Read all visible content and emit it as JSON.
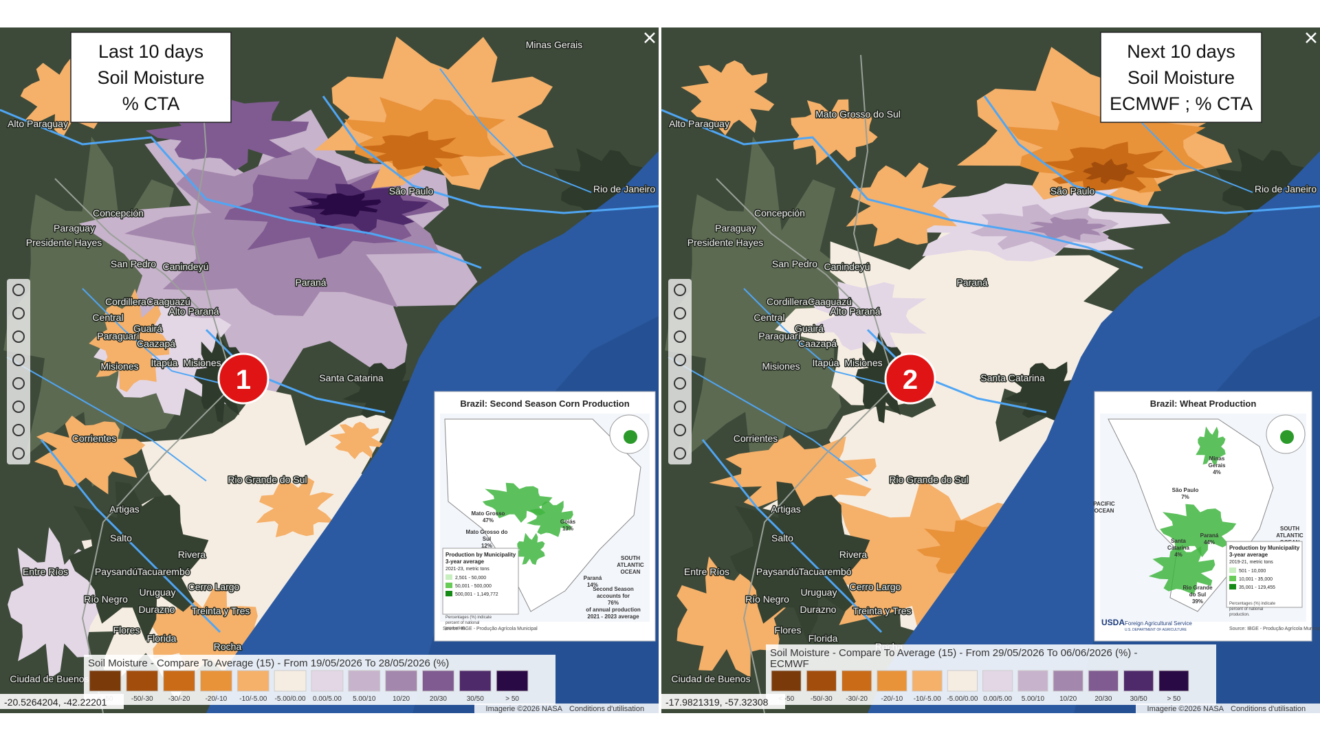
{
  "map_labels": [
    "Minas Gerais",
    "Alto Paraguay",
    "São Paulo",
    "Rio de Janeiro",
    "Concepción",
    "Paraguay",
    "Presidente Hayes",
    "San Pedro",
    "Canindeyú",
    "Paraná",
    "Cordillera",
    "Caaguazú",
    "Alto Paraná",
    "Central",
    "Guairá",
    "Paraguarí",
    "Caazapá",
    "Misiones",
    "Itapúa",
    "Misiones",
    "Santa Catarina",
    "Corrientes",
    "Rio Grande do Sul",
    "Artigas",
    "Salto",
    "Rivera",
    "Entre Ríos",
    "Paysandú",
    "Tacuarembó",
    "Cerro Largo",
    "Río Negro",
    "Uruguay",
    "Durazno",
    "Treinta y Tres",
    "Flores",
    "Florida",
    "Rocha",
    "Ciudad de Buenos"
  ],
  "legend_classes": [
    {
      "label": "< -50",
      "color": "#7a3a0a"
    },
    {
      "label": "-50/-30",
      "color": "#a24d0c"
    },
    {
      "label": "-30/-20",
      "color": "#c96b17"
    },
    {
      "label": "-20/-10",
      "color": "#e8923a"
    },
    {
      "label": "-10/-5.00",
      "color": "#f5b06a"
    },
    {
      "label": "-5.00/0.00",
      "color": "#f6ede2"
    },
    {
      "label": "0.00/5.00",
      "color": "#e3d7e6"
    },
    {
      "label": "5.00/10",
      "color": "#c7b3cc"
    },
    {
      "label": "10/20",
      "color": "#a487ad"
    },
    {
      "label": "20/30",
      "color": "#7f5b91"
    },
    {
      "label": "30/50",
      "color": "#4f2a6b"
    },
    {
      "label": "> 50",
      "color": "#2a0a45"
    }
  ],
  "panels": [
    {
      "title": [
        "Last 10 days",
        "Soil Moisture",
        "% CTA"
      ],
      "badge": "1",
      "extra_labels": [],
      "legend_title": [
        "Soil Moisture - Compare To Average (15) - From 19/05/2026 To 28/05/2026 (%)"
      ],
      "coordinates": "-20.5264204, -42.22201",
      "attribution": [
        "Imagerie ©2026 NASA",
        "Conditions d'utilisation"
      ],
      "inset": {
        "title": "Brazil: Second Season Corn Production",
        "labels": [
          [
            "Mato Grosso",
            "47%"
          ],
          [
            "Mato Grosso do",
            "Sul",
            "12%"
          ],
          [
            "Goiás",
            "13%"
          ],
          [
            "Paraná",
            "14%"
          ],
          [
            "SOUTH",
            "ATLANTIC",
            "OCEAN"
          ],
          [
            "Second Season",
            "accounts for",
            "76%",
            "of annual production",
            "2021 - 2023 average"
          ]
        ],
        "legend_title": [
          "Production by Municipality",
          "3-year average",
          "2021-23, metric tons"
        ],
        "legend": [
          "2,501 - 50,000",
          "50,001 - 500,000",
          "500,001 - 1,149,772"
        ],
        "note": [
          "Percentages (%) indicate",
          "percent of national",
          "production."
        ],
        "source": "Source: IBGE - Produção Agrícola Municipal"
      }
    },
    {
      "title": [
        "Next 10 days",
        "Soil Moisture",
        "ECMWF ; % CTA"
      ],
      "badge": "2",
      "extra_labels": [
        "Mato Grosso do Sul"
      ],
      "legend_title": [
        "Soil Moisture - Compare To Average (15) - From 29/05/2026 To 06/06/2026 (%) -",
        "ECMWF"
      ],
      "coordinates": "-17.9821319, -57.32308",
      "attribution": [
        "Imagerie ©2026 NASA",
        "Conditions d'utilisation"
      ],
      "inset": {
        "title": "Brazil: Wheat Production",
        "labels": [
          [
            "Minas",
            "Gerais",
            "4%"
          ],
          [
            "São Paulo",
            "7%"
          ],
          [
            "Paraná",
            "44%"
          ],
          [
            "Santa",
            "Catarina",
            "4%"
          ],
          [
            "Rio Grande",
            "do Sul",
            "39%"
          ],
          [
            "PACIFIC",
            "OCEAN"
          ],
          [
            "SOUTH",
            "ATLANTIC",
            "OCEAN"
          ]
        ],
        "legend_title": [
          "Production by Municipality",
          "3-year average",
          "2019-21, metric tons"
        ],
        "legend": [
          "501 - 10,000",
          "10,001 - 35,000",
          "35,001 - 129,455"
        ],
        "note": [
          "Percentages (%) indicate",
          "percent of national",
          "production."
        ],
        "source": "Source: IBGE - Produção Agrícola Municipal",
        "agency": [
          "USDA",
          "Foreign Agricultural Service",
          "U.S. DEPARTMENT OF AGRICULTURE"
        ]
      }
    }
  ]
}
